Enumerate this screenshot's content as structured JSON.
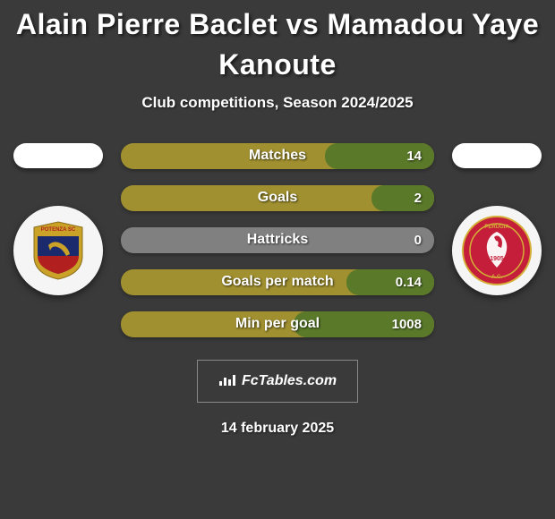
{
  "title": "Alain Pierre Baclet vs Mamadou Yaye Kanoute",
  "subtitle": "Club competitions, Season 2024/2025",
  "stats": [
    {
      "label": "Matches",
      "value": "14",
      "bar_base": "#a09030",
      "fill_color": "#5a7a2a",
      "fill_pct": 35
    },
    {
      "label": "Goals",
      "value": "2",
      "bar_base": "#a09030",
      "fill_color": "#5a7a2a",
      "fill_pct": 20
    },
    {
      "label": "Hattricks",
      "value": "0",
      "bar_base": "#808080",
      "fill_color": "#808080",
      "fill_pct": 0
    },
    {
      "label": "Goals per match",
      "value": "0.14",
      "bar_base": "#a09030",
      "fill_color": "#5a7a2a",
      "fill_pct": 28
    },
    {
      "label": "Min per goal",
      "value": "1008",
      "bar_base": "#a09030",
      "fill_color": "#5a7a2a",
      "fill_pct": 45
    }
  ],
  "left_team": {
    "name_top": "POTENZA SC",
    "badge_bg": "#f5f5f5",
    "crest_colors": {
      "top": "#c9a227",
      "mid": "#1a2a6c",
      "bottom": "#b21f1f"
    }
  },
  "right_team": {
    "name": "PERUGIA",
    "year": "1905",
    "badge_bg": "#f5f5f5",
    "crest_bg": "#c41e3a",
    "crest_border": "#d4af37"
  },
  "footer_brand": "FcTables.com",
  "date": "14 february 2025",
  "colors": {
    "page_bg": "#3a3a3a",
    "text": "#ffffff",
    "pill_bg": "#ffffff"
  }
}
